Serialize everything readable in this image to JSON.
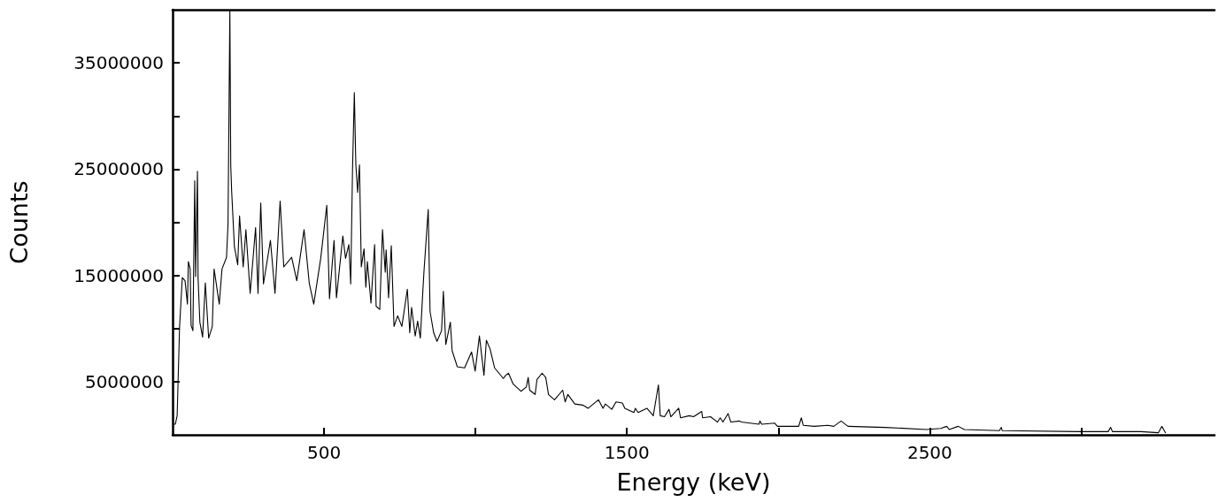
{
  "chart_data": {
    "type": "line",
    "xlabel": "Energy (keV)",
    "ylabel": "Counts",
    "x": [
      3,
      9,
      15,
      23,
      32,
      41,
      49,
      52,
      58,
      61,
      67,
      73,
      76,
      82,
      84,
      90,
      99,
      108,
      119,
      131,
      137,
      154,
      163,
      178,
      183,
      189,
      192,
      195,
      204,
      215,
      221,
      233,
      242,
      256,
      274,
      282,
      291,
      300,
      323,
      338,
      355,
      367,
      393,
      410,
      434,
      451,
      466,
      489,
      509,
      518,
      533,
      541,
      562,
      571,
      582,
      588,
      594,
      600,
      605,
      611,
      617,
      623,
      632,
      638,
      643,
      655,
      667,
      672,
      684,
      693,
      702,
      705,
      713,
      722,
      731,
      743,
      757,
      775,
      783,
      789,
      801,
      809,
      818,
      824,
      830,
      844,
      850,
      862,
      873,
      888,
      894,
      902,
      917,
      923,
      940,
      964,
      987,
      999,
      1013,
      1028,
      1036,
      1048,
      1063,
      1092,
      1100,
      1109,
      1124,
      1150,
      1168,
      1174,
      1179,
      1197,
      1203,
      1220,
      1232,
      1241,
      1261,
      1288,
      1296,
      1305,
      1328,
      1354,
      1372,
      1406,
      1421,
      1429,
      1450,
      1464,
      1485,
      1493,
      1523,
      1528,
      1537,
      1566,
      1587,
      1604,
      1610,
      1624,
      1639,
      1645,
      1671,
      1677,
      1706,
      1720,
      1747,
      1750,
      1776,
      1799,
      1808,
      1817,
      1834,
      1843,
      1872,
      1878,
      1936,
      1939,
      1945,
      1988,
      1997,
      2067,
      2076,
      2082,
      2119,
      2163,
      2183,
      2207,
      2230,
      2352,
      2489,
      2536,
      2556,
      2564,
      2594,
      2614,
      2730,
      2736,
      2739,
      2993,
      3089,
      3097,
      3103,
      3197,
      3255,
      3266,
      3278
    ],
    "series": [
      {
        "color": "#000000",
        "values": [
          1000000,
          1000000,
          1800000,
          10200000,
          14800000,
          14500000,
          12300000,
          16300000,
          15600000,
          10300000,
          9800000,
          23900000,
          14900000,
          24800000,
          14800000,
          10600000,
          9200000,
          14300000,
          9100000,
          10200000,
          15600000,
          12300000,
          15600000,
          16700000,
          19900000,
          40000000,
          25300000,
          22900000,
          17700000,
          16000000,
          20600000,
          15800000,
          19300000,
          13300000,
          19500000,
          13300000,
          21800000,
          14200000,
          18300000,
          13300000,
          22000000,
          15800000,
          16700000,
          14500000,
          19300000,
          14300000,
          12300000,
          16600000,
          21600000,
          12800000,
          18300000,
          12900000,
          18700000,
          16600000,
          17900000,
          14200000,
          24900000,
          32200000,
          25400000,
          22800000,
          25400000,
          15800000,
          17500000,
          13900000,
          16300000,
          12400000,
          17900000,
          12100000,
          11800000,
          19300000,
          15300000,
          17400000,
          12900000,
          17800000,
          10200000,
          11200000,
          10200000,
          13700000,
          9600000,
          12000000,
          9300000,
          10700000,
          9100000,
          12400000,
          15400000,
          21200000,
          11600000,
          9600000,
          8800000,
          9800000,
          13500000,
          8500000,
          10600000,
          7900000,
          6400000,
          6300000,
          7800000,
          6000000,
          9300000,
          5600000,
          8900000,
          8100000,
          6300000,
          5300000,
          5600000,
          5800000,
          4800000,
          4100000,
          4500000,
          5400000,
          4200000,
          3800000,
          5200000,
          5800000,
          5400000,
          3800000,
          3300000,
          4200000,
          3100000,
          3800000,
          2900000,
          2800000,
          2500000,
          3300000,
          2500000,
          2900000,
          2400000,
          3100000,
          3000000,
          2500000,
          2100000,
          2500000,
          2100000,
          2500000,
          1800000,
          4700000,
          1800000,
          1700000,
          2400000,
          1700000,
          2500000,
          1600000,
          1800000,
          1700000,
          2200000,
          1600000,
          1700000,
          1200000,
          1600000,
          1200000,
          2000000,
          1200000,
          1300000,
          1200000,
          1000000,
          1300000,
          1000000,
          1100000,
          800000,
          800000,
          1600000,
          900000,
          800000,
          900000,
          800000,
          1300000,
          800000,
          700000,
          500000,
          600000,
          800000,
          500000,
          800000,
          500000,
          400000,
          700000,
          400000,
          300000,
          300000,
          700000,
          300000,
          300000,
          200000,
          800000,
          200000
        ]
      }
    ],
    "xlim": [
      0,
      3440
    ],
    "xticks": [
      500,
      {
        "value": 1000,
        "label": null
      },
      1500,
      {
        "value": 2000,
        "label": null
      },
      2500,
      {
        "value": 3000,
        "label": null
      }
    ],
    "ylim": [
      0,
      40000000
    ],
    "yticks": [
      5000000,
      {
        "value": 10000000,
        "label": null
      },
      15000000,
      {
        "value": 20000000,
        "label": null
      },
      25000000,
      {
        "value": 30000000,
        "label": null
      },
      35000000
    ],
    "marker": "none",
    "line_style": "solid"
  }
}
